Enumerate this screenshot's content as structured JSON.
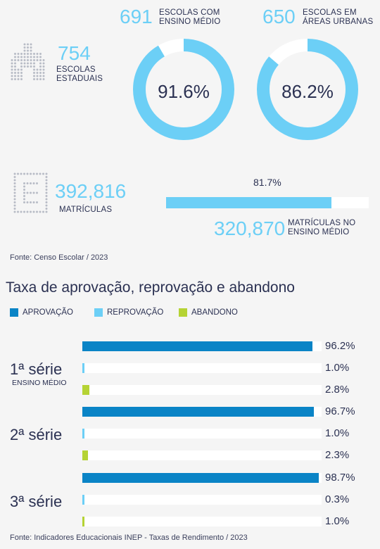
{
  "colors": {
    "accent_light": "#6ccff6",
    "aprovacao": "#0a84c6",
    "reprovacao": "#6ccff6",
    "abandono": "#b5d334",
    "text": "#2b3152",
    "track": "#ffffff"
  },
  "stats": {
    "escolas_estaduais": {
      "number": "754",
      "label_1": "ESCOLAS",
      "label_2": "ESTADUAIS"
    },
    "ensino_medio": {
      "number": "691",
      "label_1": "ESCOLAS COM",
      "label_2": "ENSINO MÉDIO",
      "pct": 91.6,
      "pct_label": "91.6%"
    },
    "areas_urbanas": {
      "number": "650",
      "label_1": "ESCOLAS EM",
      "label_2": "ÁREAS URBANAS",
      "pct": 86.2,
      "pct_label": "86.2%"
    },
    "matriculas": {
      "number": "392,816",
      "label": "MATRÍCULAS"
    },
    "matriculas_em": {
      "number": "320,870",
      "label_1": "MATRÍCULAS NO",
      "label_2": "ENSINO MÉDIO",
      "pct": 81.7,
      "pct_label": "81.7%"
    },
    "fonte": "Fonte: Censo Escolar / 2023"
  },
  "chart_data": {
    "type": "bar",
    "title": "Taxa de aprovação, reprovação e abandono",
    "legend": [
      "APROVAÇÃO",
      "REPROVAÇÃO",
      "ABANDONO"
    ],
    "legend_position": "top-left",
    "categories": [
      "1ª série",
      "2ª série",
      "3ª série"
    ],
    "category_sub": [
      "ENSINO MÉDIO",
      "",
      ""
    ],
    "series": [
      {
        "name": "APROVAÇÃO",
        "values": [
          96.2,
          96.7,
          98.7
        ],
        "labels": [
          "96.2%",
          "96.7%",
          "98.7%"
        ]
      },
      {
        "name": "REPROVAÇÃO",
        "values": [
          1.0,
          1.0,
          0.3
        ],
        "labels": [
          "1.0%",
          "1.0%",
          "0.3%"
        ]
      },
      {
        "name": "ABANDONO",
        "values": [
          2.8,
          2.3,
          1.0
        ],
        "labels": [
          "2.8%",
          "2.3%",
          "1.0%"
        ]
      }
    ],
    "xlim": [
      0,
      100
    ],
    "fonte": "Fonte: Indicadores Educacionais INEP - Taxas de Rendimento / 2023"
  }
}
